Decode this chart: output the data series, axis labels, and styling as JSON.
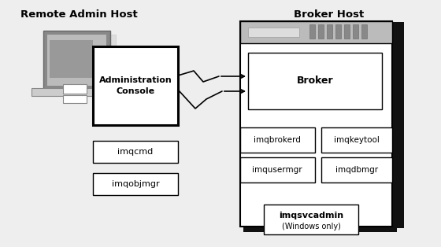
{
  "bg_color": "#eeeeee",
  "title_remote": "Remote Admin Host",
  "title_broker": "Broker Host",
  "remote_box_label": "Administration\nConsole",
  "broker_box_label": "Broker",
  "utilities_remote": [
    "imqcmd",
    "imqobjmgr"
  ],
  "utilities_broker": [
    "imqbrokerd",
    "imqkeytool",
    "imqusermgr",
    "imqdbmgr"
  ],
  "utility_windows_line1": "imqsvcadmin",
  "utility_windows_line2": "(Windows only)"
}
